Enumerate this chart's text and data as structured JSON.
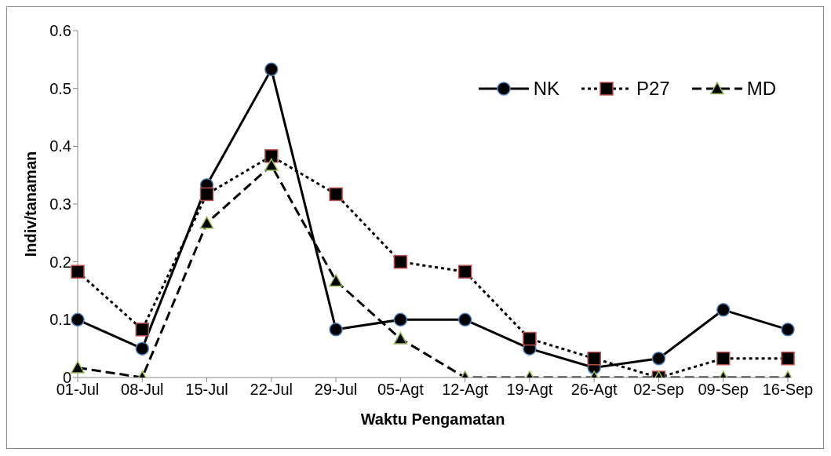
{
  "chart_data": {
    "type": "line",
    "xlabel": "Waktu Pengamatan",
    "ylabel": "Indiv/tanaman",
    "categories": [
      "01-Jul",
      "08-Jul",
      "15-Jul",
      "22-Jul",
      "29-Jul",
      "05-Agt",
      "12-Agt",
      "19-Agt",
      "26-Agt",
      "02-Sep",
      "09-Sep",
      "16-Sep"
    ],
    "series": [
      {
        "name": "NK",
        "color": "#000000",
        "marker": "circle",
        "line_style": "solid",
        "values": [
          0.1,
          0.05,
          0.333,
          0.533,
          0.083,
          0.1,
          0.1,
          0.05,
          0.017,
          0.033,
          0.117,
          0.083
        ]
      },
      {
        "name": "P27",
        "color": "#000000",
        "marker": "square",
        "line_style": "dotted",
        "values": [
          0.183,
          0.083,
          0.317,
          0.383,
          0.317,
          0.2,
          0.183,
          0.067,
          0.033,
          0,
          0.033,
          0.033
        ]
      },
      {
        "name": "MD",
        "color": "#000000",
        "marker": "triangle",
        "line_style": "dashed",
        "values": [
          0.017,
          0,
          0.267,
          0.367,
          0.167,
          0.067,
          0,
          0,
          0,
          0,
          0,
          0
        ]
      }
    ],
    "ylim": [
      0,
      0.6
    ],
    "yticks": [
      0,
      0.1,
      0.2,
      0.3,
      0.4,
      0.5,
      0.6
    ],
    "grid": false,
    "legend": "top right"
  }
}
